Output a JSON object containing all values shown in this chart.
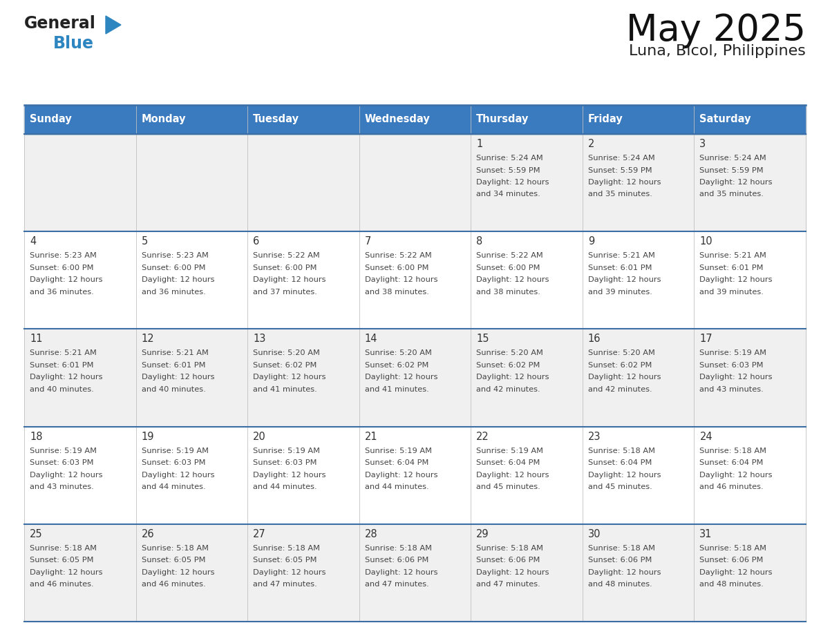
{
  "title": "May 2025",
  "subtitle": "Luna, Bicol, Philippines",
  "header_bg": "#3a7abf",
  "header_text_color": "#ffffff",
  "days_of_week": [
    "Sunday",
    "Monday",
    "Tuesday",
    "Wednesday",
    "Thursday",
    "Friday",
    "Saturday"
  ],
  "cell_bg_even": "#f0f0f0",
  "cell_bg_odd": "#ffffff",
  "cell_text_color": "#444444",
  "day_num_color": "#333333",
  "grid_line_color": "#3a6ea5",
  "calendar": [
    [
      null,
      null,
      null,
      null,
      {
        "day": 1,
        "sunrise": "5:24 AM",
        "sunset": "5:59 PM",
        "daylight": "12 hours and 34 minutes"
      },
      {
        "day": 2,
        "sunrise": "5:24 AM",
        "sunset": "5:59 PM",
        "daylight": "12 hours and 35 minutes"
      },
      {
        "day": 3,
        "sunrise": "5:24 AM",
        "sunset": "5:59 PM",
        "daylight": "12 hours and 35 minutes"
      }
    ],
    [
      {
        "day": 4,
        "sunrise": "5:23 AM",
        "sunset": "6:00 PM",
        "daylight": "12 hours and 36 minutes"
      },
      {
        "day": 5,
        "sunrise": "5:23 AM",
        "sunset": "6:00 PM",
        "daylight": "12 hours and 36 minutes"
      },
      {
        "day": 6,
        "sunrise": "5:22 AM",
        "sunset": "6:00 PM",
        "daylight": "12 hours and 37 minutes"
      },
      {
        "day": 7,
        "sunrise": "5:22 AM",
        "sunset": "6:00 PM",
        "daylight": "12 hours and 38 minutes"
      },
      {
        "day": 8,
        "sunrise": "5:22 AM",
        "sunset": "6:00 PM",
        "daylight": "12 hours and 38 minutes"
      },
      {
        "day": 9,
        "sunrise": "5:21 AM",
        "sunset": "6:01 PM",
        "daylight": "12 hours and 39 minutes"
      },
      {
        "day": 10,
        "sunrise": "5:21 AM",
        "sunset": "6:01 PM",
        "daylight": "12 hours and 39 minutes"
      }
    ],
    [
      {
        "day": 11,
        "sunrise": "5:21 AM",
        "sunset": "6:01 PM",
        "daylight": "12 hours and 40 minutes"
      },
      {
        "day": 12,
        "sunrise": "5:21 AM",
        "sunset": "6:01 PM",
        "daylight": "12 hours and 40 minutes"
      },
      {
        "day": 13,
        "sunrise": "5:20 AM",
        "sunset": "6:02 PM",
        "daylight": "12 hours and 41 minutes"
      },
      {
        "day": 14,
        "sunrise": "5:20 AM",
        "sunset": "6:02 PM",
        "daylight": "12 hours and 41 minutes"
      },
      {
        "day": 15,
        "sunrise": "5:20 AM",
        "sunset": "6:02 PM",
        "daylight": "12 hours and 42 minutes"
      },
      {
        "day": 16,
        "sunrise": "5:20 AM",
        "sunset": "6:02 PM",
        "daylight": "12 hours and 42 minutes"
      },
      {
        "day": 17,
        "sunrise": "5:19 AM",
        "sunset": "6:03 PM",
        "daylight": "12 hours and 43 minutes"
      }
    ],
    [
      {
        "day": 18,
        "sunrise": "5:19 AM",
        "sunset": "6:03 PM",
        "daylight": "12 hours and 43 minutes"
      },
      {
        "day": 19,
        "sunrise": "5:19 AM",
        "sunset": "6:03 PM",
        "daylight": "12 hours and 44 minutes"
      },
      {
        "day": 20,
        "sunrise": "5:19 AM",
        "sunset": "6:03 PM",
        "daylight": "12 hours and 44 minutes"
      },
      {
        "day": 21,
        "sunrise": "5:19 AM",
        "sunset": "6:04 PM",
        "daylight": "12 hours and 44 minutes"
      },
      {
        "day": 22,
        "sunrise": "5:19 AM",
        "sunset": "6:04 PM",
        "daylight": "12 hours and 45 minutes"
      },
      {
        "day": 23,
        "sunrise": "5:18 AM",
        "sunset": "6:04 PM",
        "daylight": "12 hours and 45 minutes"
      },
      {
        "day": 24,
        "sunrise": "5:18 AM",
        "sunset": "6:04 PM",
        "daylight": "12 hours and 46 minutes"
      }
    ],
    [
      {
        "day": 25,
        "sunrise": "5:18 AM",
        "sunset": "6:05 PM",
        "daylight": "12 hours and 46 minutes"
      },
      {
        "day": 26,
        "sunrise": "5:18 AM",
        "sunset": "6:05 PM",
        "daylight": "12 hours and 46 minutes"
      },
      {
        "day": 27,
        "sunrise": "5:18 AM",
        "sunset": "6:05 PM",
        "daylight": "12 hours and 47 minutes"
      },
      {
        "day": 28,
        "sunrise": "5:18 AM",
        "sunset": "6:06 PM",
        "daylight": "12 hours and 47 minutes"
      },
      {
        "day": 29,
        "sunrise": "5:18 AM",
        "sunset": "6:06 PM",
        "daylight": "12 hours and 47 minutes"
      },
      {
        "day": 30,
        "sunrise": "5:18 AM",
        "sunset": "6:06 PM",
        "daylight": "12 hours and 48 minutes"
      },
      {
        "day": 31,
        "sunrise": "5:18 AM",
        "sunset": "6:06 PM",
        "daylight": "12 hours and 48 minutes"
      }
    ]
  ],
  "logo_text1": "General",
  "logo_text2": "Blue",
  "logo_text1_color": "#222222",
  "logo_text2_color": "#2e86c1",
  "logo_triangle_color": "#2e86c1",
  "figsize": [
    11.88,
    9.18
  ],
  "dpi": 100
}
